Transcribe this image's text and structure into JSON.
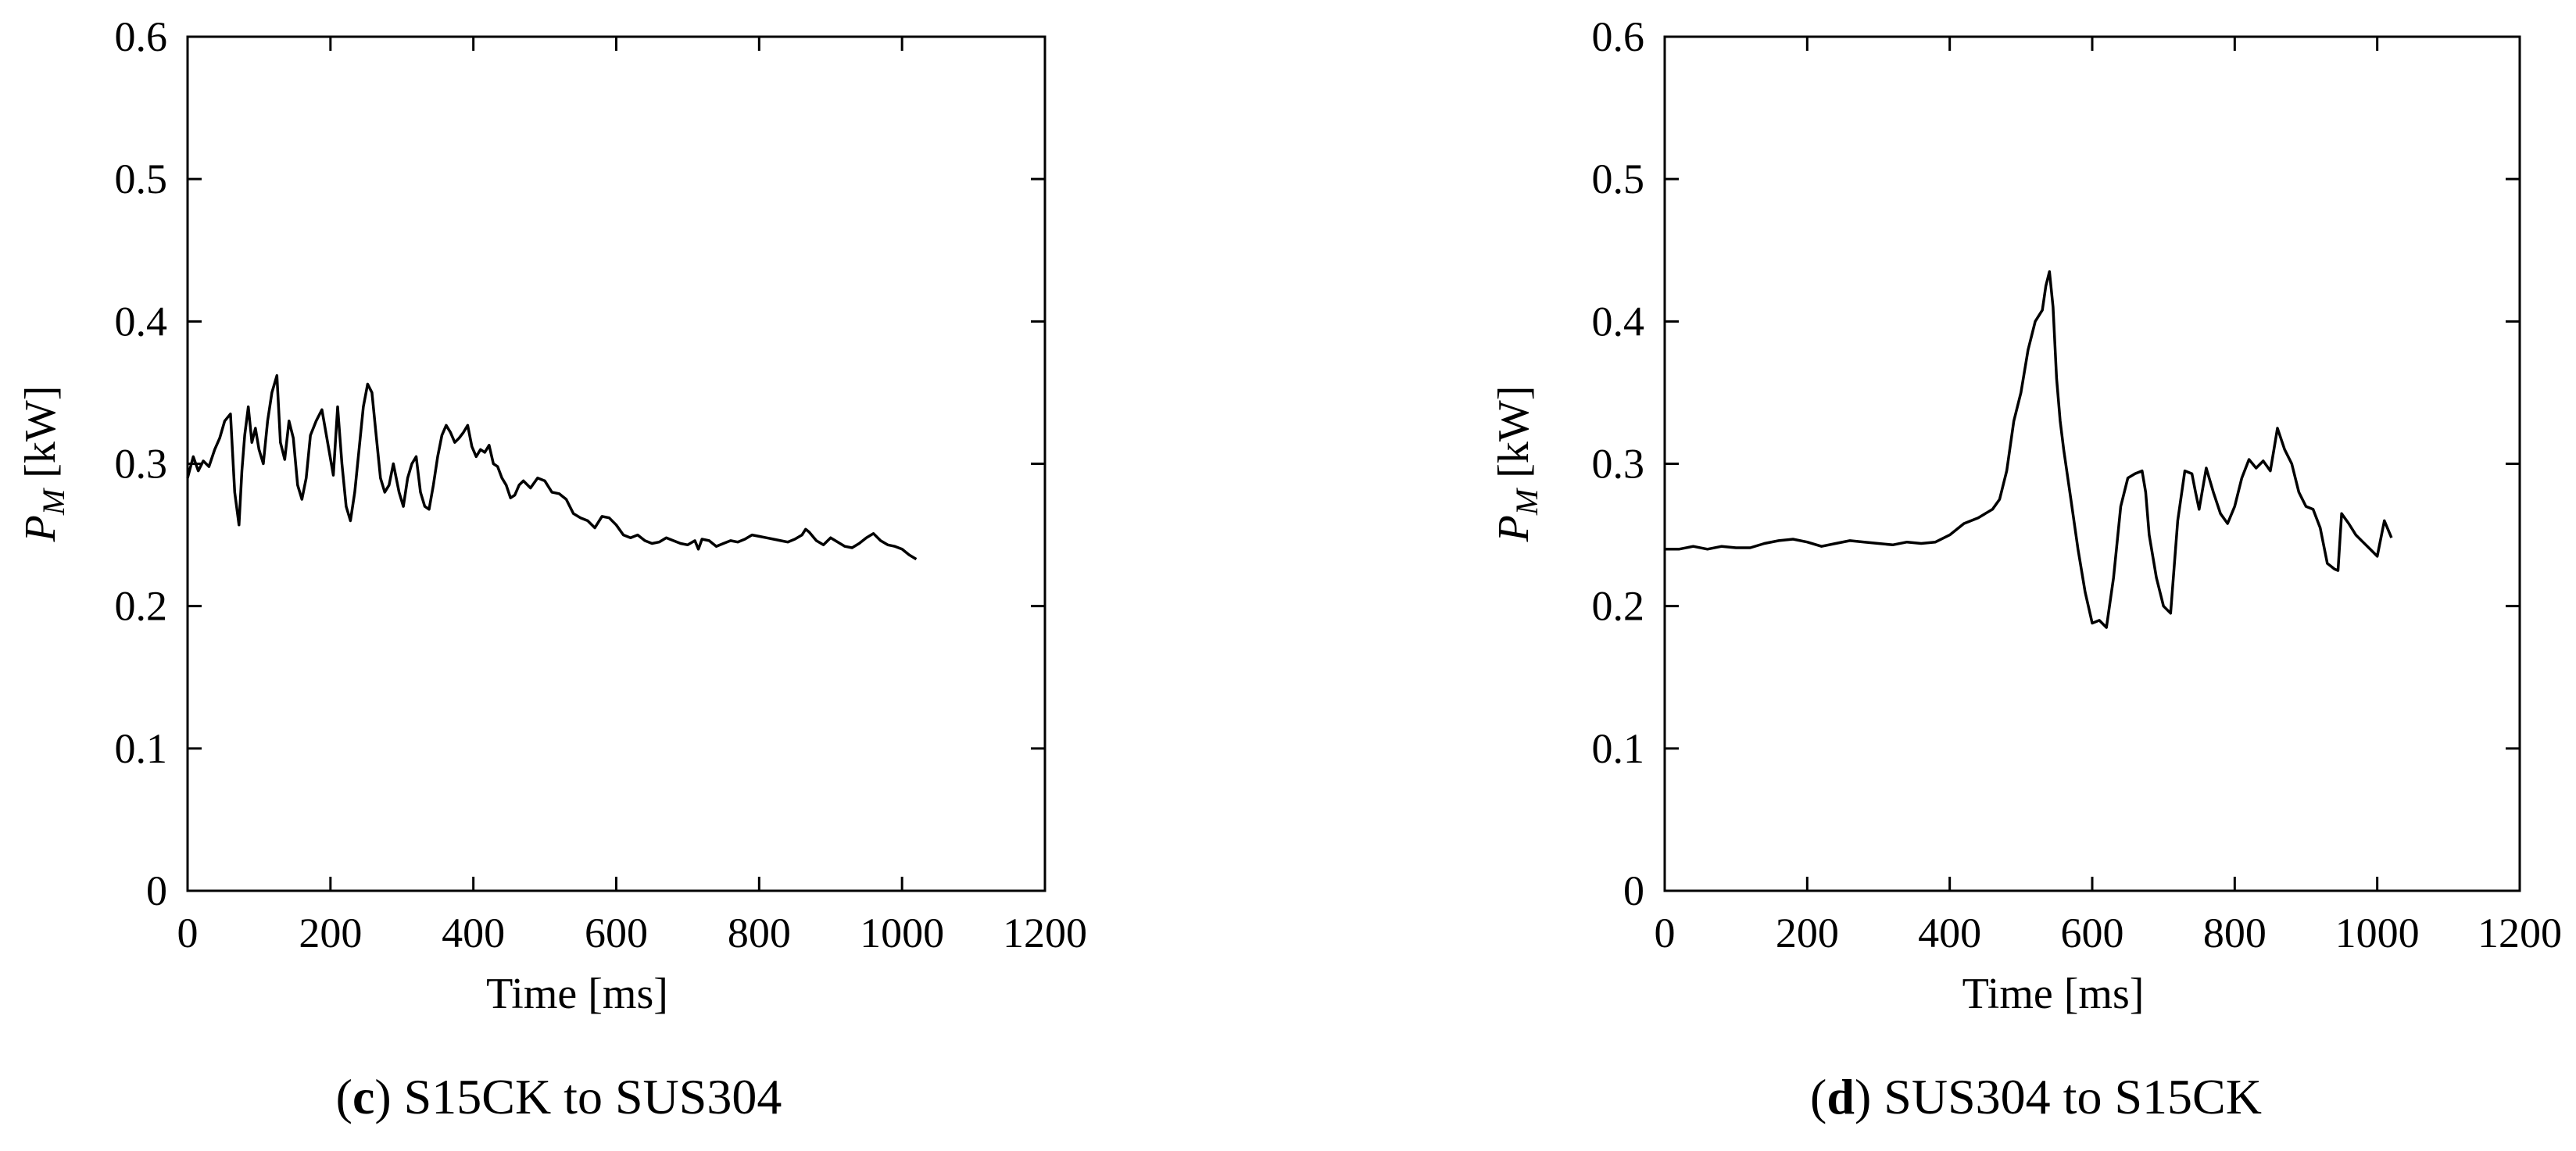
{
  "chart_data": [
    {
      "type": "line",
      "panel": "c",
      "caption": {
        "letter": "c",
        "text": "S15CK to SUS304"
      },
      "xlabel": "Time [ms]",
      "ylabel": {
        "symbol": "P",
        "subscript": "M",
        "unit": " [kW]"
      },
      "xlim": [
        0,
        1200
      ],
      "ylim": [
        0,
        0.6
      ],
      "xticks": [
        "0",
        "200",
        "400",
        "600",
        "800",
        "1000",
        "1200"
      ],
      "yticks": [
        "0",
        "0.1",
        "0.2",
        "0.3",
        "0.4",
        "0.5",
        "0.6"
      ],
      "grid": false,
      "legend": "none",
      "series": [
        {
          "color": "#000000",
          "x": [
            0,
            8,
            15,
            22,
            30,
            38,
            45,
            52,
            60,
            66,
            72,
            76,
            80,
            85,
            90,
            95,
            100,
            106,
            112,
            118,
            125,
            130,
            136,
            142,
            148,
            154,
            160,
            166,
            172,
            180,
            188,
            196,
            204,
            210,
            216,
            222,
            228,
            234,
            240,
            246,
            252,
            258,
            264,
            270,
            276,
            282,
            288,
            296,
            302,
            308,
            314,
            320,
            326,
            332,
            338,
            344,
            350,
            356,
            362,
            368,
            374,
            380,
            386,
            392,
            398,
            404,
            410,
            416,
            422,
            428,
            434,
            440,
            446,
            452,
            458,
            464,
            470,
            480,
            490,
            500,
            510,
            520,
            530,
            540,
            550,
            560,
            570,
            580,
            590,
            600,
            610,
            620,
            630,
            640,
            650,
            660,
            670,
            680,
            690,
            700,
            710,
            715,
            720,
            730,
            740,
            750,
            760,
            770,
            780,
            790,
            800,
            810,
            820,
            830,
            840,
            850,
            860,
            865,
            870,
            880,
            890,
            900,
            910,
            920,
            930,
            940,
            950,
            960,
            970,
            980,
            990,
            1000,
            1010,
            1020
          ],
          "y": [
            0.29,
            0.305,
            0.295,
            0.302,
            0.298,
            0.31,
            0.318,
            0.33,
            0.335,
            0.28,
            0.257,
            0.295,
            0.32,
            0.34,
            0.315,
            0.325,
            0.31,
            0.3,
            0.33,
            0.35,
            0.362,
            0.315,
            0.303,
            0.33,
            0.318,
            0.285,
            0.275,
            0.29,
            0.32,
            0.33,
            0.338,
            0.315,
            0.292,
            0.34,
            0.3,
            0.27,
            0.26,
            0.28,
            0.31,
            0.34,
            0.356,
            0.35,
            0.32,
            0.29,
            0.28,
            0.285,
            0.3,
            0.28,
            0.27,
            0.29,
            0.3,
            0.305,
            0.28,
            0.27,
            0.268,
            0.285,
            0.305,
            0.32,
            0.327,
            0.322,
            0.315,
            0.318,
            0.322,
            0.327,
            0.312,
            0.305,
            0.31,
            0.308,
            0.313,
            0.3,
            0.298,
            0.29,
            0.285,
            0.276,
            0.278,
            0.285,
            0.288,
            0.283,
            0.29,
            0.288,
            0.28,
            0.279,
            0.275,
            0.265,
            0.262,
            0.26,
            0.255,
            0.263,
            0.262,
            0.257,
            0.25,
            0.248,
            0.25,
            0.246,
            0.244,
            0.245,
            0.248,
            0.246,
            0.244,
            0.243,
            0.246,
            0.24,
            0.247,
            0.246,
            0.242,
            0.244,
            0.246,
            0.245,
            0.247,
            0.25,
            0.249,
            0.248,
            0.247,
            0.246,
            0.245,
            0.247,
            0.25,
            0.254,
            0.252,
            0.246,
            0.243,
            0.248,
            0.245,
            0.242,
            0.241,
            0.244,
            0.248,
            0.251,
            0.246,
            0.243,
            0.242,
            0.24,
            0.236,
            0.233
          ]
        }
      ]
    },
    {
      "type": "line",
      "panel": "d",
      "caption": {
        "letter": "d",
        "text": "SUS304 to S15CK"
      },
      "xlabel": "Time [ms]",
      "ylabel": {
        "symbol": "P",
        "subscript": "M",
        "unit": " [kW]"
      },
      "xlim": [
        0,
        1200
      ],
      "ylim": [
        0,
        0.6
      ],
      "xticks": [
        "0",
        "200",
        "400",
        "600",
        "800",
        "1000",
        "1200"
      ],
      "yticks": [
        "0",
        "0.1",
        "0.2",
        "0.3",
        "0.4",
        "0.5",
        "0.6"
      ],
      "grid": false,
      "legend": "none",
      "series": [
        {
          "color": "#000000",
          "x": [
            0,
            20,
            40,
            60,
            80,
            100,
            120,
            140,
            160,
            180,
            200,
            220,
            240,
            260,
            280,
            300,
            320,
            340,
            360,
            380,
            400,
            420,
            440,
            460,
            470,
            480,
            490,
            500,
            510,
            520,
            530,
            535,
            540,
            545,
            550,
            555,
            560,
            570,
            580,
            590,
            600,
            610,
            620,
            630,
            640,
            650,
            660,
            670,
            675,
            680,
            690,
            700,
            710,
            720,
            730,
            740,
            745,
            750,
            760,
            770,
            780,
            790,
            800,
            810,
            820,
            830,
            840,
            850,
            855,
            860,
            870,
            880,
            890,
            900,
            910,
            920,
            930,
            940,
            945,
            950,
            960,
            970,
            980,
            990,
            1000,
            1010,
            1020
          ],
          "y": [
            0.24,
            0.24,
            0.242,
            0.24,
            0.242,
            0.241,
            0.241,
            0.244,
            0.246,
            0.247,
            0.245,
            0.242,
            0.244,
            0.246,
            0.245,
            0.244,
            0.243,
            0.245,
            0.244,
            0.245,
            0.25,
            0.258,
            0.262,
            0.268,
            0.275,
            0.295,
            0.33,
            0.35,
            0.38,
            0.4,
            0.408,
            0.425,
            0.435,
            0.41,
            0.36,
            0.33,
            0.31,
            0.275,
            0.24,
            0.21,
            0.188,
            0.19,
            0.185,
            0.22,
            0.27,
            0.29,
            0.293,
            0.295,
            0.28,
            0.25,
            0.22,
            0.2,
            0.195,
            0.26,
            0.295,
            0.293,
            0.28,
            0.268,
            0.297,
            0.28,
            0.265,
            0.258,
            0.27,
            0.29,
            0.303,
            0.297,
            0.302,
            0.295,
            0.31,
            0.325,
            0.31,
            0.3,
            0.28,
            0.27,
            0.268,
            0.255,
            0.23,
            0.226,
            0.225,
            0.265,
            0.258,
            0.25,
            0.245,
            0.24,
            0.235,
            0.26,
            0.248
          ]
        }
      ]
    }
  ]
}
